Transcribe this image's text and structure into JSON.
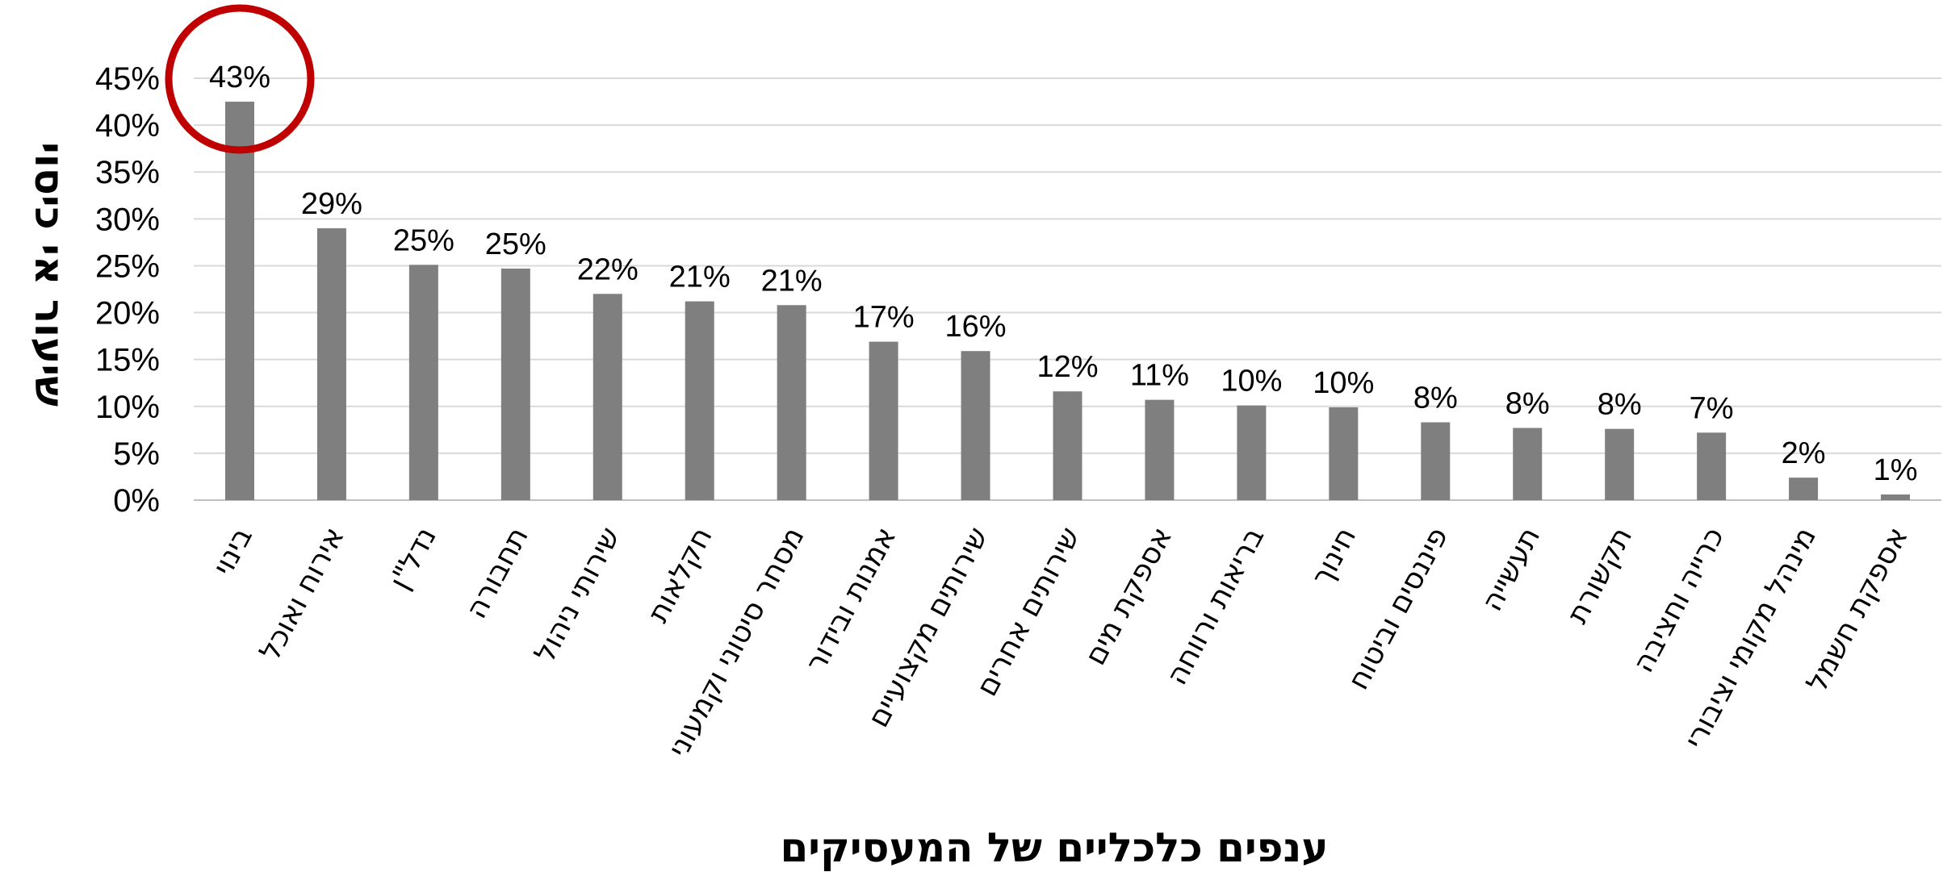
{
  "chart_data": {
    "type": "bar",
    "title": "",
    "xlabel": "ענפים כלכליים של המעסיקים",
    "ylabel": "שיעור אי כיסוי",
    "ylim": [
      0,
      45
    ],
    "yticks": [
      "0%",
      "5%",
      "10%",
      "15%",
      "20%",
      "25%",
      "30%",
      "35%",
      "40%",
      "45%"
    ],
    "grid": true,
    "bar_color": "#7f7f7f",
    "highlight_color": "#c00000",
    "highlight_index": 0,
    "categories": [
      "בינוי",
      "אירוח ואוכל",
      "נדל\"ן",
      "תחבורה",
      "שירותי ניהול",
      "חקלאות",
      "מסחר סיטוני וקמעוני",
      "אמנות ובידור",
      "שירותים מקצועיים",
      "שירותים אחרים",
      "אספקת מים",
      "בריאות ורווחה",
      "חינוך",
      "פיננסים וביטוח",
      "תעשייה",
      "תקשורת",
      "כרייה וחציבה",
      "מינהל מקומי וציבורי",
      "אספקת חשמל"
    ],
    "values": [
      42.5,
      29.0,
      25.1,
      24.7,
      22.0,
      21.2,
      20.8,
      16.9,
      15.9,
      11.6,
      10.7,
      10.1,
      9.9,
      8.3,
      7.7,
      7.6,
      7.2,
      2.4,
      0.6
    ],
    "data_labels": [
      "43%",
      "29%",
      "25%",
      "25%",
      "22%",
      "21%",
      "21%",
      "17%",
      "16%",
      "12%",
      "11%",
      "10%",
      "10%",
      "8%",
      "8%",
      "8%",
      "7%",
      "2%",
      "1%"
    ]
  }
}
